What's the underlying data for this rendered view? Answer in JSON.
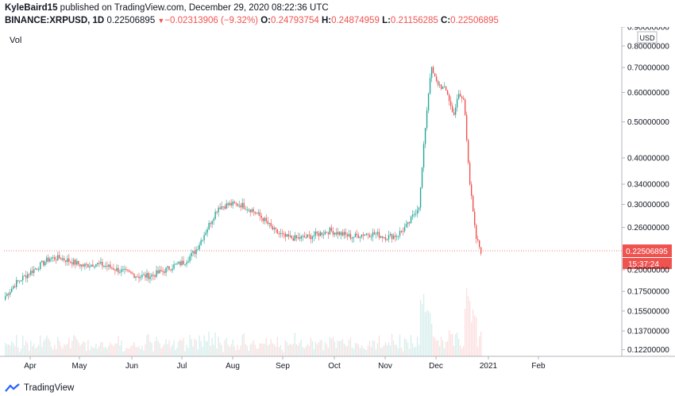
{
  "header": {
    "author": "KyleBaird15",
    "published": " published on TradingView.com, December 29, 2020 08:22:36 UTC",
    "symbol": "BINANCE:XRPUSD, 1D",
    "last": "0.22506895",
    "change": "−0.02313906 (−9.32%)",
    "o_label": "O:",
    "o_value": "0.24793754",
    "h_label": "H:",
    "h_value": "0.24874959",
    "l_label": "L:",
    "l_value": "0.21156285",
    "c_label": "C:",
    "c_value": "0.22506895"
  },
  "colors": {
    "up": "#26a69a",
    "down": "#ef5350",
    "axis": "#b2b5be",
    "text": "#131722",
    "price_tag": "#ef5350"
  },
  "chart_data": {
    "type": "candlestick",
    "pane_label": "Vol",
    "currency": "USD",
    "y_scale": "log",
    "y_ticks": [
      "0.90000000",
      "0.80000000",
      "0.70000000",
      "0.60000000",
      "0.50000000",
      "0.40000000",
      "0.34000000",
      "0.30000000",
      "0.26000000",
      "0.22506895",
      "0.20000000",
      "0.17500000",
      "0.15500000",
      "0.13700000",
      "0.12200000"
    ],
    "x_ticks": [
      "Apr",
      "May",
      "Jun",
      "Jul",
      "Aug",
      "Sep",
      "Oct",
      "Nov",
      "Dec",
      "2021",
      "Feb"
    ],
    "last_price": "0.22506895",
    "countdown": "15:37:24",
    "series": [
      {
        "t": 0.0,
        "c": 0.17
      },
      {
        "t": 0.031,
        "c": 0.185
      },
      {
        "t": 0.063,
        "c": 0.195
      },
      {
        "t": 0.094,
        "c": 0.205
      },
      {
        "t": 0.125,
        "c": 0.215
      },
      {
        "t": 0.156,
        "c": 0.215
      },
      {
        "t": 0.188,
        "c": 0.21
      },
      {
        "t": 0.219,
        "c": 0.205
      },
      {
        "t": 0.25,
        "c": 0.208
      },
      {
        "t": 0.281,
        "c": 0.205
      },
      {
        "t": 0.313,
        "c": 0.2
      },
      {
        "t": 0.344,
        "c": 0.196
      },
      {
        "t": 0.375,
        "c": 0.192
      },
      {
        "t": 0.406,
        "c": 0.193
      },
      {
        "t": 0.438,
        "c": 0.198
      },
      {
        "t": 0.469,
        "c": 0.205
      },
      {
        "t": 0.5,
        "c": 0.21
      },
      {
        "t": 0.531,
        "c": 0.225
      },
      {
        "t": 0.563,
        "c": 0.258
      },
      {
        "t": 0.594,
        "c": 0.295
      },
      {
        "t": 0.625,
        "c": 0.3
      },
      {
        "t": 0.656,
        "c": 0.3
      },
      {
        "t": 0.688,
        "c": 0.29
      },
      {
        "t": 0.719,
        "c": 0.275
      },
      {
        "t": 0.75,
        "c": 0.255
      },
      {
        "t": 0.781,
        "c": 0.245
      },
      {
        "t": 0.813,
        "c": 0.243
      },
      {
        "t": 0.844,
        "c": 0.245
      },
      {
        "t": 0.875,
        "c": 0.25
      },
      {
        "t": 0.906,
        "c": 0.255
      },
      {
        "t": 0.938,
        "c": 0.25
      },
      {
        "t": 0.969,
        "c": 0.245
      },
      {
        "t": 1.0,
        "c": 0.25
      },
      {
        "t": 1.031,
        "c": 0.25
      },
      {
        "t": 1.063,
        "c": 0.245
      },
      {
        "t": 1.094,
        "c": 0.248
      },
      {
        "t": 1.125,
        "c": 0.265
      },
      {
        "t": 1.156,
        "c": 0.3
      },
      {
        "t": 1.172,
        "c": 0.48
      },
      {
        "t": 1.188,
        "c": 0.7
      },
      {
        "t": 1.203,
        "c": 0.64
      },
      {
        "t": 1.219,
        "c": 0.62
      },
      {
        "t": 1.234,
        "c": 0.6
      },
      {
        "t": 1.25,
        "c": 0.52
      },
      {
        "t": 1.266,
        "c": 0.59
      },
      {
        "t": 1.281,
        "c": 0.57
      },
      {
        "t": 1.297,
        "c": 0.34
      },
      {
        "t": 1.313,
        "c": 0.245
      },
      {
        "t": 1.328,
        "c": 0.225
      }
    ]
  },
  "branding": {
    "name": "TradingView"
  }
}
